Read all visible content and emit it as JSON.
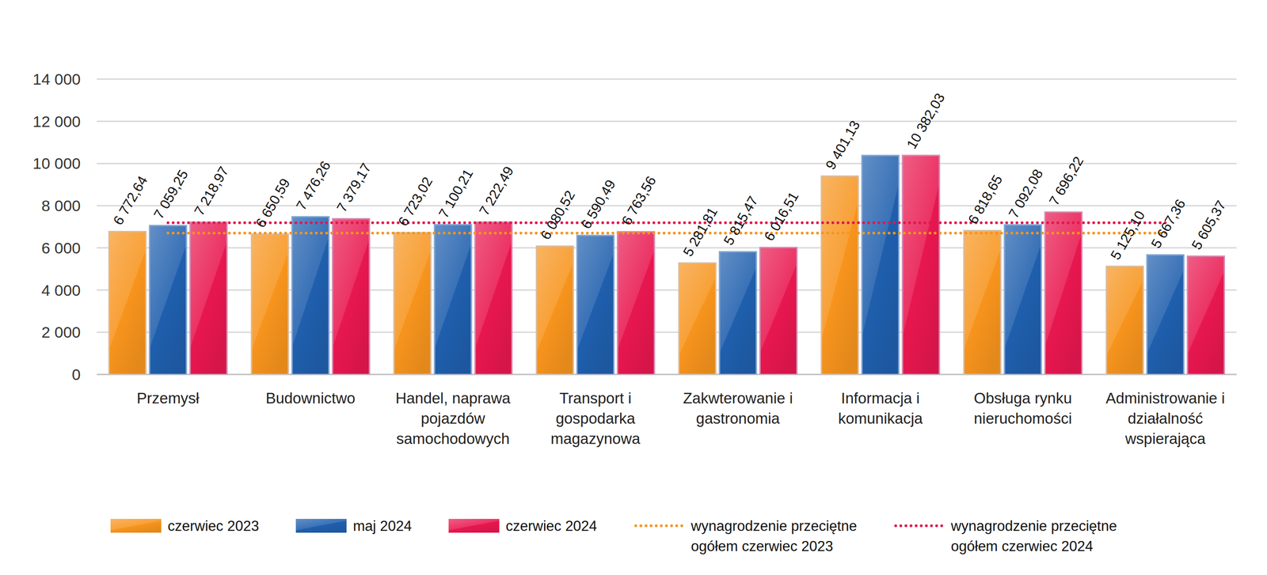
{
  "chart_data": {
    "type": "bar",
    "categories": [
      "Przemysł",
      "Budownictwo",
      "Handel, naprawa pojazdów samochodowych",
      "Transport i gospodarka magazynowa",
      "Zakwterowanie i gastronomia",
      "Informacja i komunikacja",
      "Obsługa rynku nieruchomości",
      "Administrowanie i działalność wspierająca"
    ],
    "series": [
      {
        "name": "czerwiec 2023",
        "color": "#f7941d",
        "values": [
          6772.64,
          6650.59,
          6723.02,
          6080.52,
          5281.81,
          9401.13,
          6818.65,
          5125.1
        ],
        "value_labels": [
          "6 772,64",
          "6 650,59",
          "6 723,02",
          "6 080,52",
          "5 281,81",
          "9 401,13",
          "6 818,65",
          "5 125,10"
        ]
      },
      {
        "name": "maj 2024",
        "color": "#1f5fad",
        "values": [
          7059.25,
          7476.26,
          7100.21,
          6590.49,
          5815.47,
          10380,
          7092.08,
          5667.36
        ],
        "value_labels": [
          "7 059,25",
          "7 476,26",
          "7 100,21",
          "6 590,49",
          "5 815,47",
          null,
          "7 092,08",
          "5 667,36"
        ]
      },
      {
        "name": "czerwiec 2024",
        "color": "#e8174f",
        "values": [
          7218.97,
          7379.17,
          7222.49,
          6763.56,
          6016.51,
          10382.03,
          7696.22,
          5605.37
        ],
        "value_labels": [
          "7 218,97",
          "7 379,17",
          "7 222,49",
          "6 763,56",
          "6 016,51",
          "10 382,03",
          "7 696,22",
          "5 605,37"
        ]
      },
      {
        "name": "wynagrodzenie przeciętne ogółem czerwiec 2023",
        "color": "#f7941d",
        "type": "line",
        "line_style": "dotted",
        "values": [
          6700,
          6700,
          6700,
          6700,
          6700,
          6700,
          6700,
          6700
        ]
      },
      {
        "name": "wynagrodzenie przeciętne ogółem czerwiec 2024",
        "color": "#e0174f",
        "type": "line",
        "line_style": "dotted",
        "values": [
          7190,
          7190,
          7190,
          7190,
          7190,
          7190,
          7190,
          7190
        ]
      }
    ],
    "ylim": [
      0,
      14000
    ],
    "yticks": [
      0,
      {
        "value": 2000,
        "label": "2 000"
      },
      {
        "value": 4000,
        "label": "4 000"
      },
      {
        "value": 6000,
        "label": "6 000"
      },
      {
        "value": 8000,
        "label": "8 000"
      },
      {
        "value": 10000,
        "label": "10 000"
      },
      {
        "value": 12000,
        "label": "12 000"
      },
      {
        "value": 14000,
        "label": "14 000"
      }
    ],
    "grid": true,
    "data_labels": true,
    "legend": "bottom"
  }
}
